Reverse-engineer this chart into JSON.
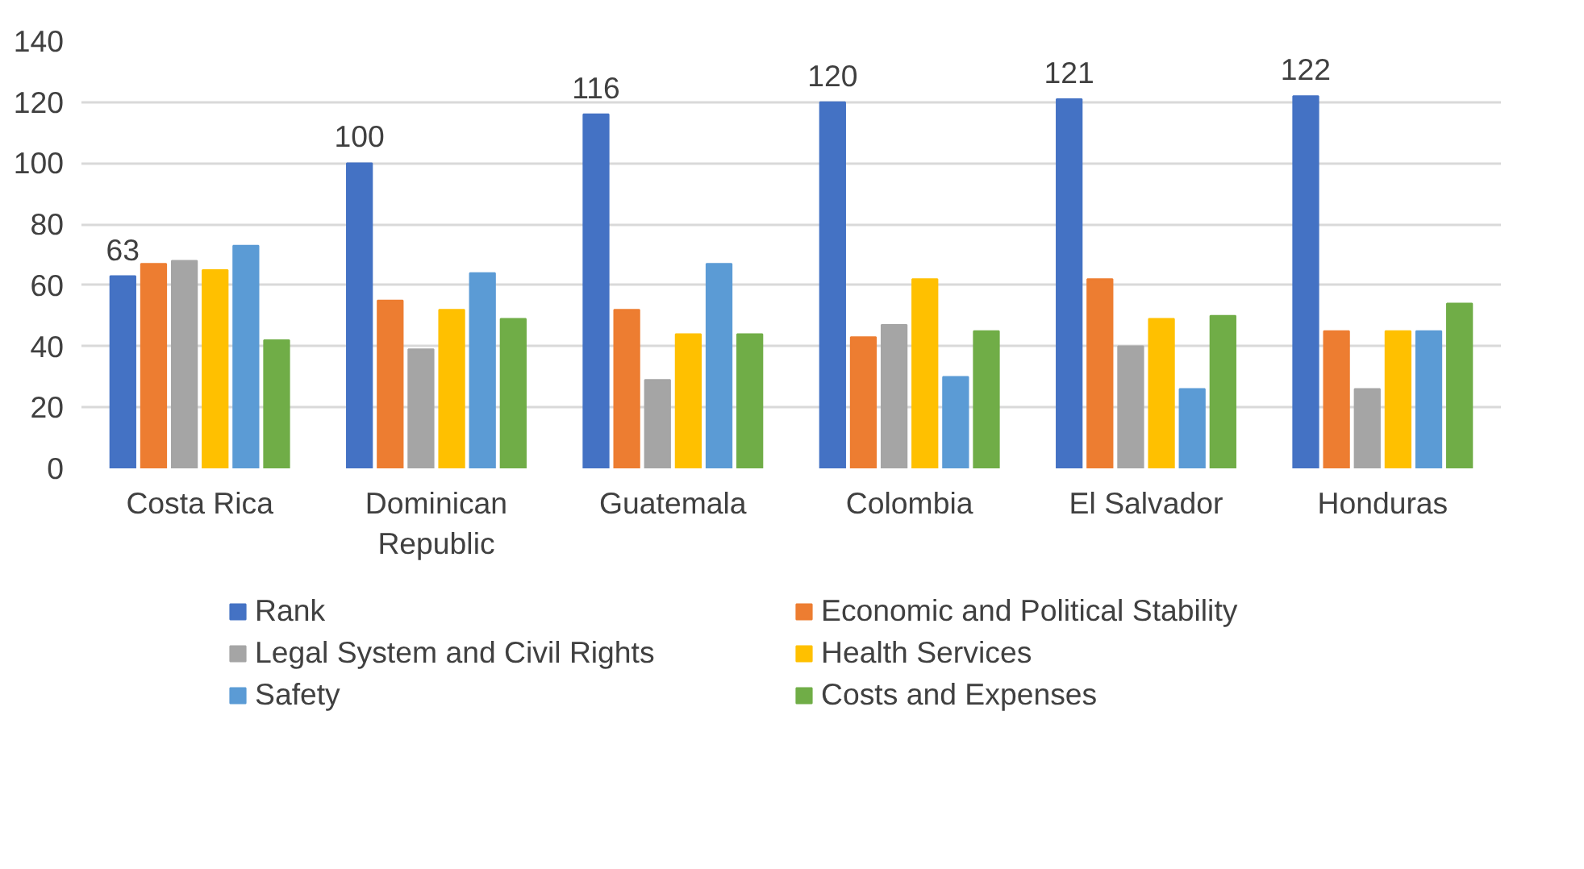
{
  "chart_data": {
    "type": "bar",
    "categories": [
      "Costa Rica",
      "Dominican Republic",
      "Guatemala",
      "Colombia",
      "El Salvador",
      "Honduras"
    ],
    "series": [
      {
        "name": "Rank",
        "color": "#4472c4",
        "values": [
          63,
          100,
          116,
          120,
          121,
          122
        ],
        "value_labels": [
          "63",
          "100",
          "116",
          "120",
          "121",
          "122"
        ]
      },
      {
        "name": "Economic and Political Stability",
        "color": "#ed7d31",
        "values": [
          67,
          55,
          52,
          43,
          62,
          45
        ]
      },
      {
        "name": "Legal System and Civil Rights",
        "color": "#a5a5a5",
        "values": [
          68,
          39,
          29,
          47,
          40,
          26
        ]
      },
      {
        "name": "Health Services",
        "color": "#ffc000",
        "values": [
          65,
          52,
          44,
          62,
          49,
          45
        ]
      },
      {
        "name": "Safety",
        "color": "#5b9bd5",
        "values": [
          73,
          64,
          67,
          30,
          26,
          45
        ]
      },
      {
        "name": "Costs and Expenses",
        "color": "#70ad47",
        "values": [
          42,
          49,
          44,
          45,
          50,
          54
        ]
      }
    ],
    "ylim": [
      0,
      140
    ],
    "yticks": [
      0,
      20,
      40,
      60,
      80,
      100,
      120,
      140
    ],
    "grid": "y",
    "legend": "bottom"
  }
}
